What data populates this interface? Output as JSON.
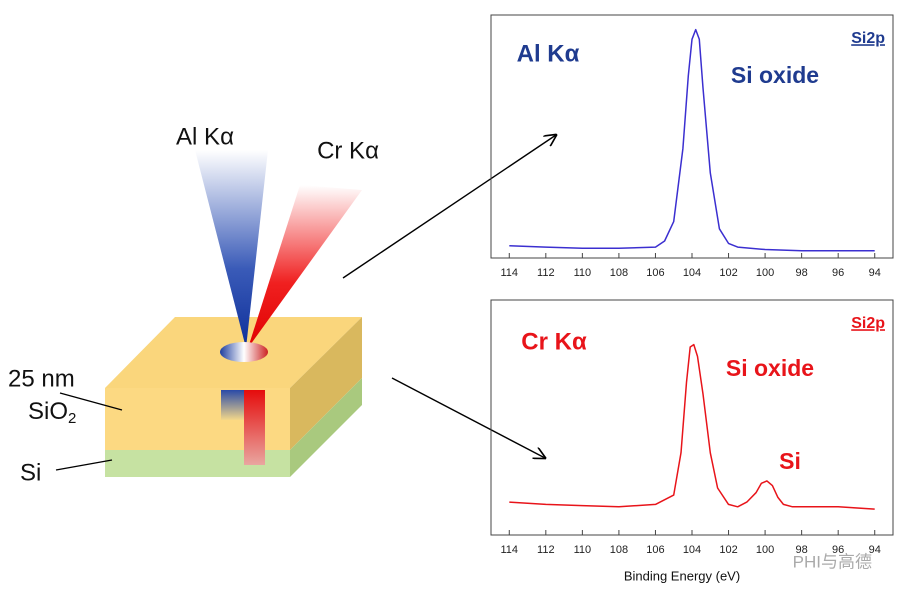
{
  "diagram": {
    "al_beam": "Al Kα",
    "cr_beam": "Cr Kα",
    "thickness": "25 nm",
    "sio2": "SiO",
    "sio2_sub": "2",
    "si": "Si"
  },
  "chart_data": [
    {
      "type": "line",
      "title": "Al Kα",
      "title_color": "#1f3b8f",
      "label": "Si2p",
      "annotations": [
        "Si oxide"
      ],
      "color": "#3b2fd0",
      "xlim": [
        115,
        93
      ],
      "ylim": [
        0,
        100
      ],
      "xticks": [
        114,
        112,
        110,
        108,
        106,
        104,
        102,
        100,
        98,
        96,
        94
      ],
      "x": [
        114,
        112,
        110,
        108,
        106,
        105.5,
        105,
        104.5,
        104.2,
        104,
        103.8,
        103.6,
        103.4,
        103,
        102.5,
        102,
        101.5,
        100,
        98,
        96,
        94
      ],
      "values": [
        5,
        4.5,
        4,
        4,
        4.5,
        7,
        15,
        45,
        75,
        90,
        94,
        90,
        70,
        35,
        12,
        6,
        4.5,
        3.5,
        3,
        3,
        3
      ]
    },
    {
      "type": "line",
      "title": "Cr Kα",
      "title_color": "#e8141a",
      "label": "Si2p",
      "annotations": [
        "Si oxide",
        "Si"
      ],
      "x_label": "Binding Energy (eV)",
      "color": "#e8141a",
      "xlim": [
        115,
        93
      ],
      "ylim": [
        0,
        100
      ],
      "xticks": [
        114,
        112,
        110,
        108,
        106,
        104,
        102,
        100,
        98,
        96,
        94
      ],
      "x": [
        114,
        112,
        110,
        108,
        106,
        105,
        104.6,
        104.3,
        104.1,
        103.9,
        103.7,
        103.4,
        103,
        102.6,
        102,
        101.5,
        101,
        100.5,
        100.2,
        99.9,
        99.6,
        99.3,
        99,
        98.5,
        98,
        96,
        94
      ],
      "values": [
        14,
        13,
        12.5,
        12,
        13,
        17,
        35,
        65,
        80,
        81,
        76,
        60,
        35,
        20,
        13,
        12,
        14,
        18,
        22,
        23,
        21,
        16,
        13,
        12,
        12,
        12,
        11
      ]
    }
  ],
  "watermark": "PHI与高德"
}
